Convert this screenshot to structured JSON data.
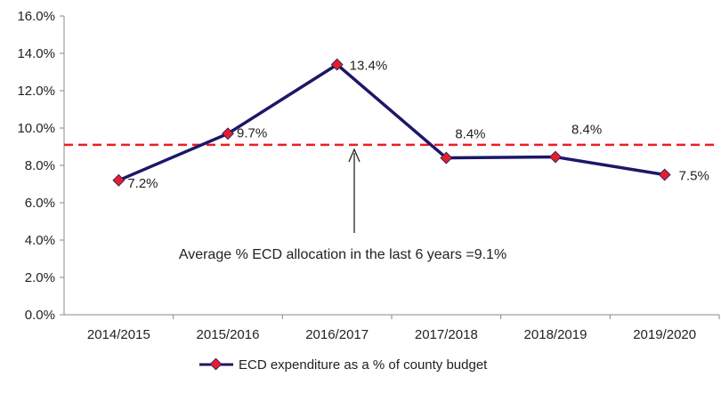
{
  "chart_data": {
    "type": "line",
    "title": "",
    "xlabel": "",
    "ylabel": "",
    "categories": [
      "2014/2015",
      "2015/2016",
      "2016/2017",
      "2017/2018",
      "2018/2019",
      "2019/2020"
    ],
    "series": [
      {
        "name": "ECD expenditure as a % of county budget",
        "values": [
          7.2,
          9.7,
          13.4,
          8.4,
          8.45,
          7.5
        ],
        "labels": [
          "7.2%",
          "9.7%",
          "13.4%",
          "8.4%",
          "8.4%",
          "7.5%"
        ]
      }
    ],
    "reference_line": {
      "value": 9.1,
      "style": "dashed",
      "color": "#ee1c24"
    },
    "annotation": "Average % ECD allocation in the last 6 years =9.1%",
    "ylim": [
      0,
      16
    ],
    "yticks": [
      0,
      2,
      4,
      6,
      8,
      10,
      12,
      14,
      16
    ],
    "ytick_labels": [
      "0.0%",
      "2.0%",
      "4.0%",
      "6.0%",
      "8.0%",
      "10.0%",
      "12.0%",
      "14.0%",
      "16.0%"
    ],
    "grid": false,
    "legend": "bottom",
    "colors": {
      "line": "#1c1767",
      "marker": "#e3202a"
    }
  }
}
